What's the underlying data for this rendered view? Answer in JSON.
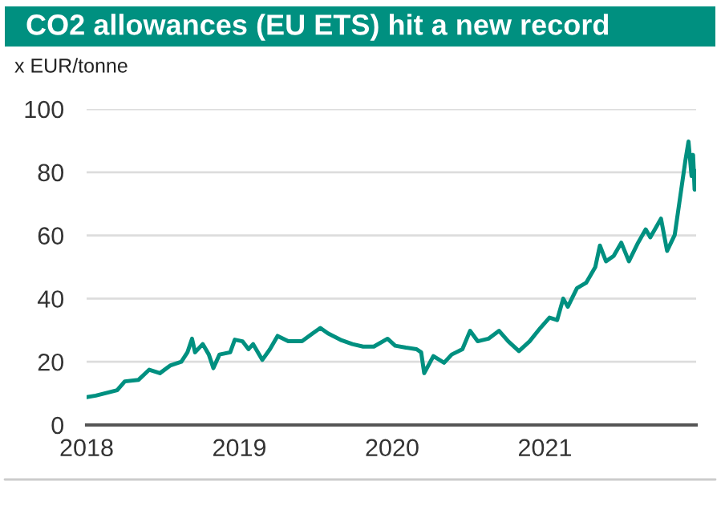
{
  "chart_data": {
    "type": "line",
    "title": "CO2 allowances (EU ETS) hit a new record",
    "ylabel": "x EUR/tonne",
    "x": [
      2018.0,
      2018.06,
      2018.2,
      2018.25,
      2018.34,
      2018.41,
      2018.48,
      2018.55,
      2018.62,
      2018.66,
      2018.69,
      2018.71,
      2018.76,
      2018.8,
      2018.83,
      2018.87,
      2018.94,
      2018.97,
      2019.02,
      2019.06,
      2019.09,
      2019.15,
      2019.2,
      2019.25,
      2019.32,
      2019.41,
      2019.48,
      2019.53,
      2019.58,
      2019.67,
      2019.74,
      2019.81,
      2019.88,
      2019.97,
      2020.02,
      2020.09,
      2020.16,
      2020.19,
      2020.21,
      2020.27,
      2020.34,
      2020.39,
      2020.46,
      2020.51,
      2020.56,
      2020.63,
      2020.7,
      2020.76,
      2020.83,
      2020.9,
      2020.97,
      2021.03,
      2021.08,
      2021.12,
      2021.15,
      2021.21,
      2021.27,
      2021.33,
      2021.36,
      2021.4,
      2021.45,
      2021.5,
      2021.55,
      2021.61,
      2021.66,
      2021.69,
      2021.76,
      2021.8,
      2021.85,
      2021.88,
      2021.92,
      2021.94,
      2021.96,
      2021.97,
      2021.98,
      2021.985
    ],
    "series": [
      {
        "color": "#009080",
        "values": [
          8.8,
          9.3,
          11,
          13.8,
          14.3,
          17.5,
          16.4,
          18.9,
          20,
          23,
          27.3,
          23,
          25.6,
          22.3,
          18,
          22.3,
          23,
          27,
          26.5,
          24,
          25.6,
          20.6,
          24,
          28.2,
          26.5,
          26.5,
          29,
          30.7,
          29,
          26.8,
          25.6,
          24.8,
          24.8,
          27.3,
          25.1,
          24.5,
          24,
          23,
          16.4,
          21.8,
          19.7,
          22.3,
          24,
          29.8,
          26.5,
          27.3,
          29.8,
          26.5,
          23.4,
          26.5,
          30.7,
          34,
          33.2,
          40,
          37.4,
          43.3,
          45,
          50,
          56.8,
          51.8,
          53.5,
          57.7,
          51.8,
          57.7,
          61.9,
          59.4,
          65.3,
          55.1,
          60.2,
          70.3,
          83.8,
          89.7,
          78.8,
          85.5,
          74.5,
          80.4
        ]
      }
    ],
    "xlim": [
      2018,
      2021.99
    ],
    "xticks": [
      2018,
      2019,
      2020,
      2021
    ],
    "ylim": [
      0,
      100
    ],
    "yticks": [
      0,
      20,
      40,
      60,
      80,
      100
    ],
    "grid": "y",
    "legend": false,
    "marker": "none",
    "line_style": "solid"
  }
}
